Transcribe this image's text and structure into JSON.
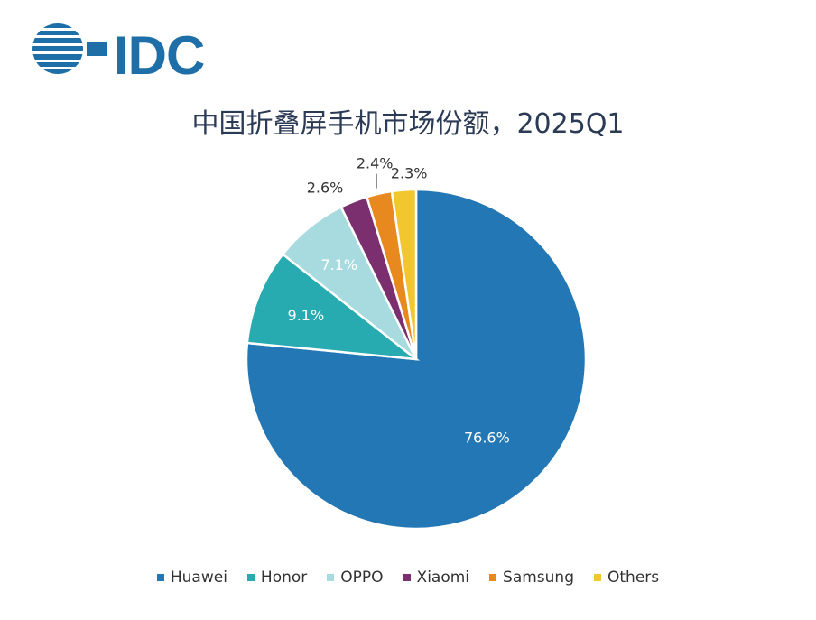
{
  "logo": {
    "text": "IDC",
    "color": "#1e6fa8"
  },
  "chart_data": {
    "type": "pie",
    "title": "中国折叠屏手机市场份额，2025Q1",
    "series": [
      {
        "name": "Huawei",
        "value": 76.6,
        "label": "76.6%",
        "color": "#2277b4"
      },
      {
        "name": "Honor",
        "value": 9.1,
        "label": "9.1%",
        "color": "#27aab0"
      },
      {
        "name": "OPPO",
        "value": 7.1,
        "label": "7.1%",
        "color": "#a8dbe0"
      },
      {
        "name": "Xiaomi",
        "value": 2.6,
        "label": "2.6%",
        "color": "#7b2f6e"
      },
      {
        "name": "Samsung",
        "value": 2.4,
        "label": "2.4%",
        "color": "#e8891f"
      },
      {
        "name": "Others",
        "value": 2.3,
        "label": "2.3%",
        "color": "#f2c62f"
      }
    ],
    "legend_position": "bottom"
  }
}
